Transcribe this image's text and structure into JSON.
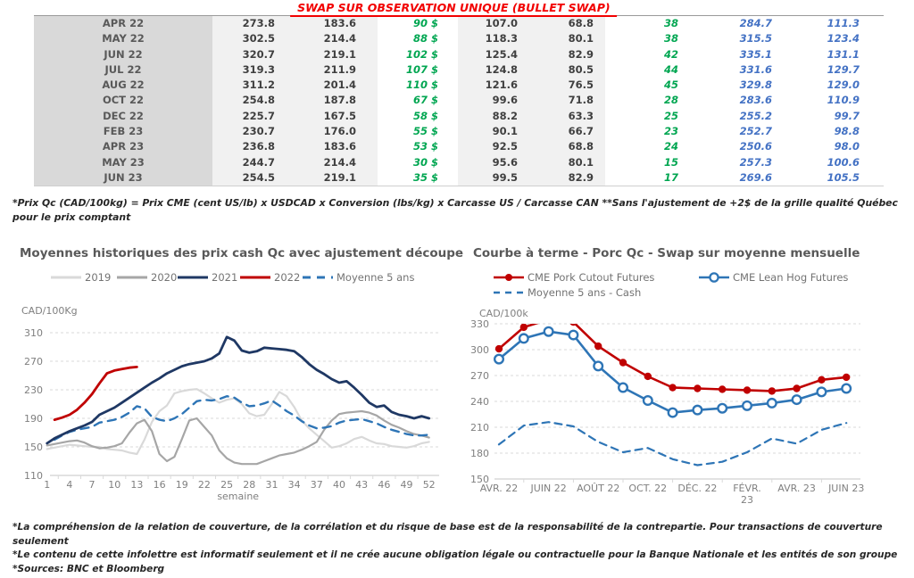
{
  "report": {
    "table_title": "SWAP SUR OBSERVATION UNIQUE (BULLET SWAP)",
    "table": {
      "col_classes": [
        "month",
        "shade",
        "shade",
        "green",
        "shade",
        "shade",
        "green",
        "blue",
        "blue"
      ],
      "rows": [
        [
          "APR 22",
          "273.8",
          "183.6",
          "90 $",
          "107.0",
          "68.8",
          "38",
          "284.7",
          "111.3"
        ],
        [
          "MAY 22",
          "302.5",
          "214.4",
          "88 $",
          "118.3",
          "80.1",
          "38",
          "315.5",
          "123.4"
        ],
        [
          "JUN 22",
          "320.7",
          "219.1",
          "102 $",
          "125.4",
          "82.9",
          "42",
          "335.1",
          "131.1"
        ],
        [
          "JUL 22",
          "319.3",
          "211.9",
          "107 $",
          "124.8",
          "80.5",
          "44",
          "331.6",
          "129.7"
        ],
        [
          "AUG 22",
          "311.2",
          "201.4",
          "110 $",
          "121.6",
          "76.5",
          "45",
          "329.8",
          "129.0"
        ],
        [
          "OCT 22",
          "254.8",
          "187.8",
          "67 $",
          "99.6",
          "71.8",
          "28",
          "283.6",
          "110.9"
        ],
        [
          "DEC 22",
          "225.7",
          "167.5",
          "58 $",
          "88.2",
          "63.3",
          "25",
          "255.2",
          "99.7"
        ],
        [
          "FEB 23",
          "230.7",
          "176.0",
          "55 $",
          "90.1",
          "66.7",
          "23",
          "252.7",
          "98.8"
        ],
        [
          "APR 23",
          "236.8",
          "183.6",
          "53 $",
          "92.5",
          "68.8",
          "24",
          "250.6",
          "98.0"
        ],
        [
          "MAY 23",
          "244.7",
          "214.4",
          "30 $",
          "95.6",
          "80.1",
          "15",
          "257.3",
          "100.6"
        ],
        [
          "JUN 23",
          "254.5",
          "219.1",
          "35 $",
          "99.5",
          "82.9",
          "17",
          "269.6",
          "105.5"
        ]
      ]
    },
    "table_footnote": "*Prix Qc (CAD/100kg) = Prix CME (cent US/lb) x USDCAD x Conversion (lbs/kg) x Carcasse US / Carcasse CAN **Sans l'ajustement de +2$ de la grille qualité Québec pour le prix comptant",
    "footnotes": [
      "*La compréhension de la relation de couverture, de la corrélation et du risque de base est de la responsabilité de la contrepartie. Pour transactions de couverture seulement",
      "*Le contenu de cette infolettre est informatif seulement et il ne crée aucune obligation légale ou contractuelle pour la Banque Nationale et les entités de son groupe",
      "*Sources: BNC et Bloomberg"
    ]
  },
  "colors": {
    "title_red": "#f20000",
    "green": "#00a651",
    "blue": "#4472c4",
    "month_bg": "#d9d9d9",
    "num_bg": "#f1f1f1",
    "navy": "#1f3864",
    "dark_red": "#c00000",
    "light_gray": "#d9d9d9",
    "mid_gray": "#a6a6a6",
    "dash_blue": "#2e75b6",
    "grid": "#d9d9d9",
    "axis_text": "#7f7f7f"
  },
  "chart_data": [
    {
      "type": "line",
      "title": "Moyennes historiques des prix cash Qc avec ajustement découpe",
      "ylabel": "CAD/100Kg",
      "xlabel": "semaine",
      "ylim": [
        110,
        310
      ],
      "yticks": [
        110,
        150,
        190,
        230,
        270,
        310
      ],
      "xticks": [
        1,
        4,
        7,
        10,
        13,
        16,
        19,
        22,
        25,
        28,
        31,
        34,
        37,
        40,
        43,
        46,
        49,
        52
      ],
      "grid": true,
      "legend_position": "top",
      "series": [
        {
          "name": "2019",
          "color": "#d9d9d9",
          "style": "solid",
          "width": 2.2,
          "start_week": 1,
          "values": [
            147,
            149,
            151,
            153,
            152,
            151,
            150,
            150,
            147,
            146,
            145,
            142,
            140,
            160,
            185,
            200,
            208,
            225,
            228,
            230,
            231,
            225,
            218,
            212,
            216,
            218,
            210,
            197,
            193,
            195,
            210,
            227,
            221,
            206,
            187,
            176,
            167,
            158,
            149,
            151,
            155,
            161,
            164,
            159,
            155,
            154,
            151,
            150,
            149,
            151,
            155,
            157
          ]
        },
        {
          "name": "2020",
          "color": "#a6a6a6",
          "style": "solid",
          "width": 2.2,
          "start_week": 1,
          "values": [
            152,
            154,
            156,
            158,
            159,
            156,
            151,
            148,
            149,
            151,
            155,
            170,
            183,
            188,
            172,
            140,
            130,
            136,
            161,
            187,
            190,
            178,
            166,
            145,
            134,
            128,
            126,
            126,
            126,
            130,
            134,
            138,
            140,
            142,
            146,
            151,
            157,
            174,
            187,
            196,
            198,
            199,
            200,
            198,
            194,
            187,
            181,
            177,
            172,
            168,
            166,
            163
          ]
        },
        {
          "name": "2021",
          "color": "#1f3864",
          "style": "solid",
          "width": 2.8,
          "start_week": 1,
          "values": [
            155,
            162,
            167,
            172,
            176,
            180,
            185,
            195,
            200,
            205,
            212,
            219,
            226,
            233,
            240,
            246,
            253,
            258,
            263,
            266,
            268,
            270,
            274,
            281,
            304,
            299,
            285,
            282,
            284,
            289,
            288,
            287,
            286,
            284,
            276,
            266,
            258,
            252,
            245,
            240,
            242,
            233,
            223,
            212,
            206,
            208,
            199,
            195,
            193,
            190,
            193,
            190
          ]
        },
        {
          "name": "2022",
          "color": "#c00000",
          "style": "solid",
          "width": 2.8,
          "start_week": 2,
          "values": [
            188,
            191,
            195,
            202,
            212,
            224,
            239,
            253,
            257,
            259,
            261,
            262
          ]
        },
        {
          "name": "Moyenne 5 ans",
          "color": "#2e75b6",
          "style": "dashed",
          "width": 2.4,
          "start_week": 2,
          "values": [
            160,
            166,
            171,
            174,
            176,
            178,
            184,
            186,
            188,
            192,
            198,
            207,
            204,
            192,
            188,
            186,
            190,
            196,
            205,
            214,
            216,
            215,
            217,
            221,
            219,
            212,
            207,
            208,
            211,
            215,
            208,
            200,
            194,
            186,
            180,
            176,
            177,
            179,
            184,
            187,
            188,
            189,
            186,
            183,
            178,
            174,
            171,
            168,
            166,
            166,
            167
          ]
        }
      ]
    },
    {
      "type": "line",
      "title": "Courbe à terme - Porc Qc - Swap sur moyenne mensuelle",
      "ylabel": "CAD/100k",
      "xlabel": "",
      "ylim": [
        150,
        330
      ],
      "yticks": [
        150,
        180,
        210,
        240,
        270,
        300,
        330
      ],
      "x_tick_month_indexes": [
        0,
        2,
        4,
        6,
        8,
        10,
        12,
        14
      ],
      "x_tick_labels": [
        [
          "AVR. 22"
        ],
        [
          "JUIN 22"
        ],
        [
          "AOÛT 22"
        ],
        [
          "OCT. 22"
        ],
        [
          "DÉC. 22"
        ],
        [
          "FÉVR.",
          "23"
        ],
        [
          "AVR. 23"
        ],
        [
          "JUIN 23"
        ]
      ],
      "months_count": 15,
      "grid": true,
      "legend_position": "top",
      "series": [
        {
          "name": "CME Pork Cutout Futures",
          "color": "#c00000",
          "style": "solid",
          "marker": "filled-circle",
          "width": 2.6,
          "values": [
            301,
            326,
            335,
            332,
            304,
            285,
            269,
            256,
            255,
            254,
            253,
            252,
            255,
            265,
            268
          ]
        },
        {
          "name": "CME Lean Hog Futures",
          "color": "#2e75b6",
          "style": "solid",
          "marker": "open-circle",
          "width": 2.6,
          "values": [
            289,
            313,
            321,
            317,
            281,
            256,
            241,
            227,
            230,
            232,
            235,
            238,
            242,
            251,
            255
          ]
        },
        {
          "name": "Moyenne 5 ans - Cash",
          "color": "#2e75b6",
          "style": "dashed",
          "marker": "none",
          "width": 2.2,
          "values": [
            190,
            212,
            216,
            211,
            193,
            181,
            186,
            173,
            166,
            170,
            181,
            197,
            191,
            207,
            215
          ]
        }
      ]
    }
  ]
}
